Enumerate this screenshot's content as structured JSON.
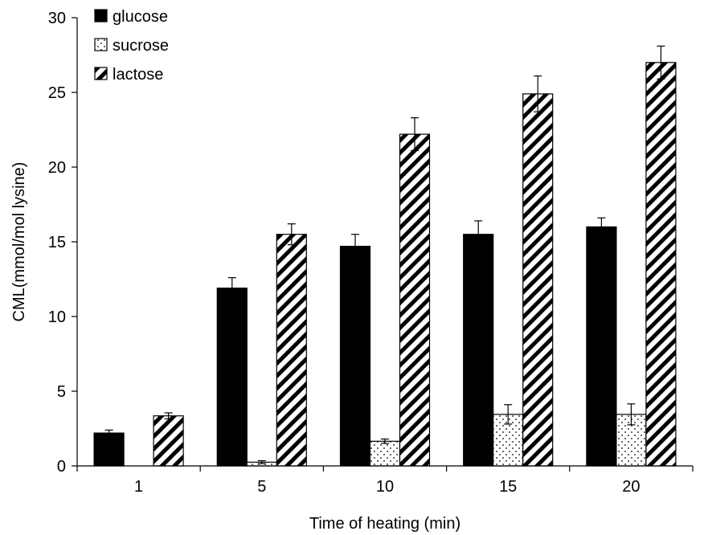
{
  "chart_data": {
    "type": "bar",
    "categories": [
      "1",
      "5",
      "10",
      "15",
      "20"
    ],
    "series": [
      {
        "name": "glucose",
        "values": [
          2.2,
          11.9,
          14.7,
          15.5,
          16.0
        ],
        "errors": [
          0.2,
          0.7,
          0.8,
          0.9,
          0.6
        ],
        "pattern": "solid"
      },
      {
        "name": "sucrose",
        "values": [
          0.0,
          0.25,
          1.65,
          3.45,
          3.45
        ],
        "errors": [
          0.0,
          0.1,
          0.15,
          0.65,
          0.7
        ],
        "pattern": "dots"
      },
      {
        "name": "lactose",
        "values": [
          3.35,
          15.5,
          22.2,
          24.9,
          27.0
        ],
        "errors": [
          0.2,
          0.7,
          1.1,
          1.2,
          1.1
        ],
        "pattern": "diagonal-stripes"
      }
    ],
    "xlabel": "Time of heating (min)",
    "ylabel": "CML(mmol/mol lysine)",
    "ylim": [
      0,
      30
    ],
    "yticks": [
      "0",
      "5",
      "10",
      "15",
      "20",
      "25",
      "30"
    ],
    "legend_position": "top-left",
    "grid": false,
    "colors": {
      "bar_fill": "#000000",
      "bar_edge": "#000000",
      "background": "#ffffff"
    }
  }
}
